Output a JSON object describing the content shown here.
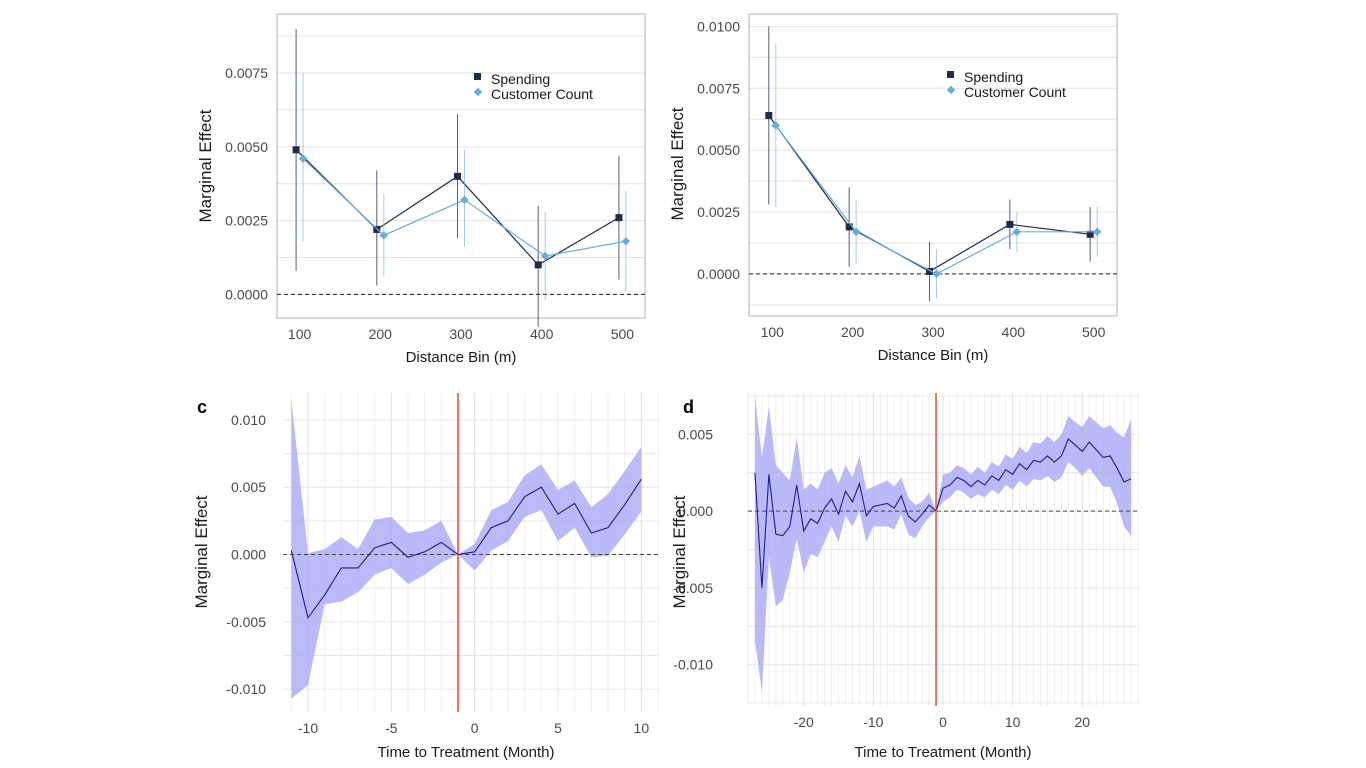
{
  "colors": {
    "spending": "#1f2a4d",
    "customer_count": "#6aaed6",
    "band": "#a7a7f7",
    "event_line": "#1c1c8c",
    "treatment_line": "#e0301e"
  },
  "chart_data": [
    {
      "id": "a",
      "type": "line",
      "panel_label": "",
      "title": "",
      "xlabel": "Distance Bin (m)",
      "ylabel": "Marginal Effect",
      "categories": [
        100,
        200,
        300,
        400,
        500
      ],
      "xticks": [
        "100",
        "200",
        "300",
        "400",
        "500"
      ],
      "ylim": [
        -0.0008,
        0.0095
      ],
      "yticks": [
        0,
        0.0025,
        0.005,
        0.0075
      ],
      "ytick_labels": [
        "0.0000",
        "0.0025",
        "0.0050",
        "0.0075"
      ],
      "legend": [
        "Spending",
        "Customer Count"
      ],
      "legend_position": "top-right",
      "series": [
        {
          "name": "Spending",
          "values": [
            0.0049,
            0.0022,
            0.004,
            0.001,
            0.0026
          ],
          "lower": [
            0.0008,
            0.0003,
            0.0019,
            -0.0011,
            0.0005
          ],
          "upper": [
            0.009,
            0.0042,
            0.0061,
            0.003,
            0.0047
          ]
        },
        {
          "name": "Customer Count",
          "values": [
            0.0046,
            0.002,
            0.0032,
            0.0013,
            0.0018
          ],
          "lower": [
            0.0018,
            0.0006,
            0.0016,
            -0.0002,
            0.0001
          ],
          "upper": [
            0.0075,
            0.0034,
            0.0049,
            0.0028,
            0.0035
          ]
        }
      ]
    },
    {
      "id": "b",
      "type": "line",
      "panel_label": "",
      "title": "",
      "xlabel": "Distance Bin (m)",
      "ylabel": "Marginal Effect",
      "categories": [
        100,
        200,
        300,
        400,
        500
      ],
      "xticks": [
        "100",
        "200",
        "300",
        "400",
        "500"
      ],
      "ylim": [
        -0.0017,
        0.0105
      ],
      "yticks": [
        0,
        0.0025,
        0.005,
        0.0075,
        0.01
      ],
      "ytick_labels": [
        "0.0000",
        "0.0025",
        "0.0050",
        "0.0075",
        "0.0100"
      ],
      "legend": [
        "Spending",
        "Customer Count"
      ],
      "legend_position": "top-right",
      "series": [
        {
          "name": "Spending",
          "values": [
            0.0064,
            0.0019,
            0.0001,
            0.002,
            0.0016
          ],
          "lower": [
            0.0028,
            0.0003,
            -0.0011,
            0.001,
            0.0005
          ],
          "upper": [
            0.01,
            0.0035,
            0.0013,
            0.003,
            0.0027
          ]
        },
        {
          "name": "Customer Count",
          "values": [
            0.006,
            0.0017,
            0.0,
            0.0017,
            0.0017
          ],
          "lower": [
            0.0027,
            0.0004,
            -0.001,
            0.0009,
            0.0007
          ],
          "upper": [
            0.0093,
            0.003,
            0.001,
            0.0025,
            0.0027
          ]
        }
      ]
    },
    {
      "id": "c",
      "type": "area",
      "panel_label": "c",
      "title": "",
      "xlabel": "Time to Treatment (Month)",
      "ylabel": "Marginal Effect",
      "xlim": [
        -11.5,
        11
      ],
      "ylim": [
        -0.0117,
        0.012
      ],
      "xticks": [
        -10,
        -5,
        0,
        5,
        10
      ],
      "xtick_labels": [
        "-10",
        "-5",
        "0",
        "5",
        "10"
      ],
      "yticks": [
        -0.01,
        -0.005,
        0,
        0.005,
        0.01
      ],
      "ytick_labels": [
        "-0.010",
        "-0.005",
        "0.000",
        "0.005",
        "0.010"
      ],
      "treatment_x": -1,
      "x": [
        -11,
        -10,
        -9,
        -8,
        -7,
        -6,
        -5,
        -4,
        -3,
        -2,
        -1,
        0,
        1,
        2,
        3,
        4,
        5,
        6,
        7,
        8,
        9,
        10
      ],
      "values": [
        0.0003,
        -0.0047,
        -0.003,
        -0.001,
        -0.001,
        0.0005,
        0.0009,
        -0.0002,
        0.0002,
        0.0009,
        0.0,
        0.0002,
        0.002,
        0.0025,
        0.0043,
        0.005,
        0.003,
        0.0038,
        0.0016,
        0.002,
        0.0037,
        0.0056
      ],
      "lower": [
        -0.0107,
        -0.0097,
        -0.0037,
        -0.0035,
        -0.0028,
        -0.0015,
        -0.001,
        -0.0022,
        -0.0015,
        -0.0006,
        0.0,
        -0.0012,
        0.0003,
        0.001,
        0.0028,
        0.0033,
        0.001,
        0.002,
        -0.0002,
        -0.0001,
        0.0015,
        0.0032
      ],
      "upper": [
        0.0115,
        0.0001,
        0.0004,
        0.0013,
        0.0004,
        0.0026,
        0.0028,
        0.0016,
        0.0018,
        0.0025,
        0.0,
        0.0008,
        0.0033,
        0.0039,
        0.0059,
        0.0067,
        0.0048,
        0.0055,
        0.0035,
        0.0045,
        0.0062,
        0.008
      ]
    },
    {
      "id": "d",
      "type": "area",
      "panel_label": "d",
      "title": "",
      "xlabel": "Time to Treatment (Month)",
      "ylabel": "Marginal Effect",
      "xlim": [
        -28,
        28
      ],
      "ylim": [
        -0.0127,
        0.0077
      ],
      "xticks": [
        -20,
        -10,
        0,
        10,
        20
      ],
      "xtick_labels": [
        "-20",
        "-10",
        "0",
        "10",
        "20"
      ],
      "yticks": [
        -0.01,
        -0.005,
        0,
        0.005
      ],
      "ytick_labels": [
        "-0.010",
        "-0.005",
        "0.000",
        "0.005"
      ],
      "treatment_x": -1,
      "x": [
        -27,
        -26,
        -25,
        -24,
        -23,
        -22,
        -21,
        -20,
        -19,
        -18,
        -17,
        -16,
        -15,
        -14,
        -13,
        -12,
        -11,
        -10,
        -9,
        -8,
        -7,
        -6,
        -5,
        -4,
        -3,
        -2,
        -1,
        0,
        1,
        2,
        3,
        4,
        5,
        6,
        7,
        8,
        9,
        10,
        11,
        12,
        13,
        14,
        15,
        16,
        17,
        18,
        19,
        20,
        21,
        22,
        23,
        24,
        25,
        26,
        27
      ],
      "values": [
        0.0025,
        -0.005,
        0.0024,
        -0.0015,
        -0.0016,
        -0.001,
        0.0017,
        -0.0013,
        -0.0005,
        -0.0008,
        0.0002,
        0.0008,
        -0.0002,
        0.0013,
        0.0006,
        0.0018,
        -0.0003,
        0.0003,
        0.0004,
        0.0005,
        0.0002,
        0.001,
        -0.0003,
        -0.0007,
        -0.0002,
        0.0004,
        0.0,
        0.0015,
        0.0017,
        0.0022,
        0.002,
        0.0016,
        0.002,
        0.0017,
        0.0023,
        0.002,
        0.0027,
        0.0024,
        0.0031,
        0.0027,
        0.0033,
        0.0032,
        0.0036,
        0.0032,
        0.0036,
        0.0047,
        0.0043,
        0.0039,
        0.0045,
        0.004,
        0.0035,
        0.0036,
        0.0028,
        0.0019,
        0.0021
      ],
      "lower": [
        -0.0085,
        -0.0118,
        -0.003,
        -0.0062,
        -0.0058,
        -0.004,
        -0.0018,
        -0.004,
        -0.0028,
        -0.003,
        -0.002,
        -0.001,
        -0.002,
        -0.0003,
        -0.001,
        0.0,
        -0.002,
        -0.001,
        -0.001,
        -0.001,
        -0.0012,
        -0.0002,
        -0.0015,
        -0.0018,
        -0.001,
        -0.0004,
        0.0,
        0.0006,
        0.0009,
        0.0014,
        0.0012,
        0.0008,
        0.0011,
        0.0009,
        0.0014,
        0.0011,
        0.0017,
        0.0014,
        0.002,
        0.0016,
        0.0021,
        0.002,
        0.0023,
        0.0019,
        0.0022,
        0.0032,
        0.0028,
        0.0023,
        0.0028,
        0.0022,
        0.0016,
        0.0016,
        0.0005,
        -0.001,
        -0.0016
      ],
      "upper": [
        0.0075,
        0.0035,
        0.0068,
        0.003,
        0.0025,
        0.002,
        0.0048,
        0.0014,
        0.0018,
        0.0014,
        0.0025,
        0.0028,
        0.0018,
        0.003,
        0.0022,
        0.0036,
        0.0014,
        0.0016,
        0.0018,
        0.002,
        0.0016,
        0.0022,
        0.0009,
        0.0004,
        0.0006,
        0.0012,
        0.0,
        0.0024,
        0.0025,
        0.003,
        0.0028,
        0.0024,
        0.0029,
        0.0025,
        0.0032,
        0.0029,
        0.0037,
        0.0034,
        0.0042,
        0.0038,
        0.0045,
        0.0044,
        0.0049,
        0.0045,
        0.005,
        0.0062,
        0.0058,
        0.0055,
        0.0062,
        0.0058,
        0.0054,
        0.0056,
        0.0051,
        0.0048,
        0.006
      ]
    }
  ]
}
